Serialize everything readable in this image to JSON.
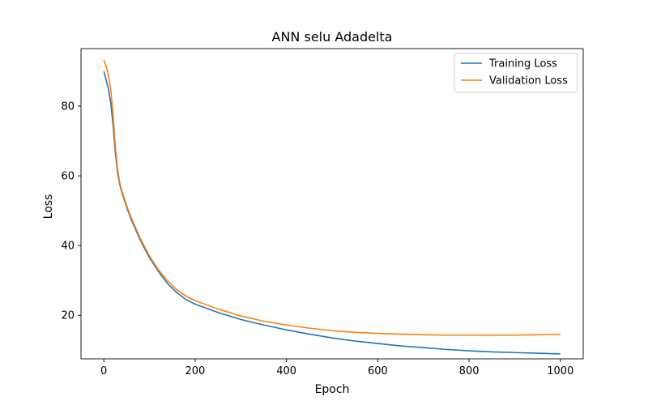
{
  "chart_data": {
    "type": "line",
    "title": "ANN selu Adadelta",
    "xlabel": "Epoch",
    "ylabel": "Loss",
    "xlim": [
      -50,
      1050
    ],
    "ylim": [
      7.5,
      96.5
    ],
    "xticks": [
      0,
      200,
      400,
      600,
      800,
      1000
    ],
    "yticks": [
      20,
      40,
      60,
      80
    ],
    "grid": false,
    "legend_position": "top-right",
    "series": [
      {
        "name": "Training Loss",
        "color": "#1f77b4",
        "x": [
          0,
          5,
          10,
          15,
          20,
          25,
          30,
          35,
          40,
          50,
          60,
          70,
          80,
          100,
          120,
          140,
          160,
          180,
          200,
          250,
          300,
          350,
          400,
          450,
          500,
          550,
          600,
          650,
          700,
          750,
          800,
          850,
          900,
          950,
          1000
        ],
        "y": [
          90.0,
          87.5,
          85.0,
          81.0,
          75.0,
          67.0,
          61.0,
          57.5,
          55.0,
          51.0,
          47.5,
          44.5,
          41.5,
          36.5,
          32.5,
          29.0,
          26.5,
          24.5,
          23.2,
          20.8,
          18.8,
          17.2,
          15.8,
          14.6,
          13.5,
          12.6,
          11.9,
          11.2,
          10.7,
          10.2,
          9.8,
          9.5,
          9.3,
          9.1,
          8.9
        ]
      },
      {
        "name": "Validation Loss",
        "color": "#ff7f0e",
        "x": [
          0,
          5,
          10,
          15,
          20,
          25,
          30,
          35,
          40,
          50,
          60,
          70,
          80,
          100,
          120,
          140,
          160,
          180,
          200,
          250,
          300,
          350,
          400,
          450,
          500,
          550,
          600,
          650,
          700,
          750,
          800,
          850,
          900,
          950,
          1000
        ],
        "y": [
          93.2,
          91.5,
          89.0,
          85.0,
          78.0,
          69.0,
          62.0,
          58.0,
          55.5,
          51.5,
          48.0,
          45.0,
          42.0,
          37.0,
          33.0,
          29.8,
          27.3,
          25.5,
          24.2,
          21.8,
          19.8,
          18.3,
          17.2,
          16.3,
          15.6,
          15.1,
          14.8,
          14.6,
          14.4,
          14.3,
          14.3,
          14.3,
          14.3,
          14.4,
          14.5
        ]
      }
    ]
  }
}
